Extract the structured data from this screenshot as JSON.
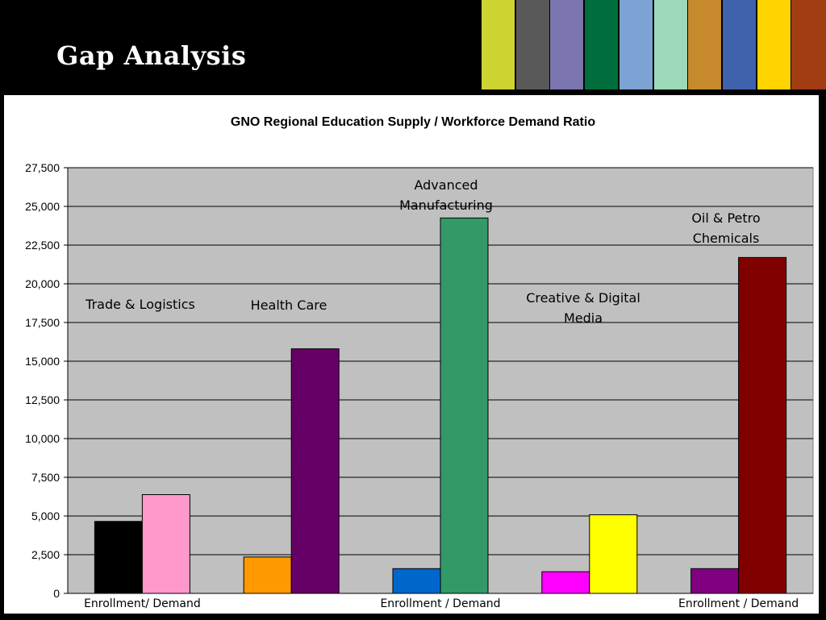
{
  "slide": {
    "title": "Gap Analysis",
    "stripe_colors": [
      "#cdd432",
      "#595959",
      "#7b76b0",
      "#006e3c",
      "#7ba3d4",
      "#9cd9b8",
      "#c68a2d",
      "#3f62ad",
      "#ffd200",
      "#a13c13"
    ]
  },
  "chart_data": {
    "type": "bar",
    "title": "GNO Regional Education Supply / Workforce Demand Ratio",
    "ylim": [
      0,
      27500
    ],
    "ytick_labels": [
      "0",
      "2,500",
      "5,000",
      "7,500",
      "10,000",
      "12,500",
      "15,000",
      "17,500",
      "20,000",
      "22,500",
      "25,000",
      "27,500"
    ],
    "ytick_values": [
      0,
      2500,
      5000,
      7500,
      10000,
      12500,
      15000,
      17500,
      20000,
      22500,
      25000,
      27500
    ],
    "grid": true,
    "plot_background": "#c0c0c0",
    "groups": [
      {
        "name": "Trade & Logistics",
        "annotation_lines": [
          "Trade & Logistics"
        ],
        "bars": [
          {
            "role": "Enrollment",
            "value": 4650,
            "color": "#000000"
          },
          {
            "role": "Demand",
            "value": 6380,
            "color": "#ff99cc"
          }
        ]
      },
      {
        "name": "Health Care",
        "annotation_lines": [
          "Health Care"
        ],
        "bars": [
          {
            "role": "Enrollment",
            "value": 2350,
            "color": "#ff9900"
          },
          {
            "role": "Demand",
            "value": 15800,
            "color": "#660066"
          }
        ]
      },
      {
        "name": "Advanced Manufacturing",
        "annotation_lines": [
          "Advanced",
          "Manufacturing"
        ],
        "bars": [
          {
            "role": "Enrollment",
            "value": 1600,
            "color": "#0066cc"
          },
          {
            "role": "Demand",
            "value": 24250,
            "color": "#339966"
          }
        ]
      },
      {
        "name": "Creative & Digital Media",
        "annotation_lines": [
          "Creative & Digital",
          "Media"
        ],
        "bars": [
          {
            "role": "Enrollment",
            "value": 1400,
            "color": "#ff00ff"
          },
          {
            "role": "Demand",
            "value": 5080,
            "color": "#ffff00"
          }
        ]
      },
      {
        "name": "Oil & Petro Chemicals",
        "annotation_lines": [
          "Oil & Petro",
          "Chemicals"
        ],
        "bars": [
          {
            "role": "Enrollment",
            "value": 1600,
            "color": "#800080"
          },
          {
            "role": "Demand",
            "value": 21700,
            "color": "#800000"
          }
        ]
      }
    ],
    "x_labels": [
      {
        "text": "Enrollment/  Demand",
        "group": 0
      },
      {
        "text": "Enrollment  / Demand",
        "group": 2
      },
      {
        "text": "Enrollment  / Demand",
        "group": 4
      }
    ]
  }
}
